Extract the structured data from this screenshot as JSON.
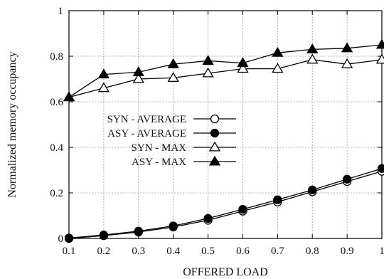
{
  "chart_data": {
    "type": "line",
    "title": "",
    "xlabel": "OFFERED LOAD",
    "ylabel": "Normalized memory occupancy",
    "x": [
      0.1,
      0.2,
      0.3,
      0.4,
      0.5,
      0.6,
      0.7,
      0.8,
      0.9,
      1.0
    ],
    "xlim": [
      0.1,
      1.0
    ],
    "ylim": [
      0,
      1
    ],
    "xticks": [
      {
        "value": 0.1,
        "label": "0.1"
      },
      {
        "value": 0.2,
        "label": "0.2"
      },
      {
        "value": 0.3,
        "label": "0.3"
      },
      {
        "value": 0.4,
        "label": "0.4"
      },
      {
        "value": 0.5,
        "label": "0.5"
      },
      {
        "value": 0.6,
        "label": "0.6"
      },
      {
        "value": 0.7,
        "label": "0.7"
      },
      {
        "value": 0.8,
        "label": "0.8"
      },
      {
        "value": 0.9,
        "label": "0.9"
      },
      {
        "value": 1.0,
        "label": "1"
      }
    ],
    "yticks": [
      {
        "value": 0,
        "label": "0"
      },
      {
        "value": 0.2,
        "label": "0.2"
      },
      {
        "value": 0.4,
        "label": "0.4"
      },
      {
        "value": 0.6,
        "label": "0.6"
      },
      {
        "value": 0.8,
        "label": "0.8"
      },
      {
        "value": 1,
        "label": "1"
      }
    ],
    "grid": true,
    "legend_position": "left-middle",
    "series": [
      {
        "name": "SYN - AVERAGE",
        "marker": "open-circle",
        "values": [
          0.0,
          0.012,
          0.028,
          0.05,
          0.08,
          0.12,
          0.16,
          0.205,
          0.25,
          0.295
        ]
      },
      {
        "name": "ASY - AVERAGE",
        "marker": "filled-circle",
        "values": [
          0.002,
          0.015,
          0.032,
          0.055,
          0.088,
          0.128,
          0.17,
          0.213,
          0.26,
          0.307
        ]
      },
      {
        "name": "SYN - MAX",
        "marker": "open-triangle",
        "values": [
          0.62,
          0.66,
          0.7,
          0.705,
          0.725,
          0.745,
          0.745,
          0.785,
          0.765,
          0.785
        ]
      },
      {
        "name": "ASY - MAX",
        "marker": "filled-triangle",
        "values": [
          0.62,
          0.72,
          0.73,
          0.765,
          0.78,
          0.77,
          0.815,
          0.83,
          0.835,
          0.85
        ]
      }
    ],
    "colors": {
      "line": "#000000",
      "grid": "#9a9a9a",
      "background": "#ffffff"
    }
  }
}
